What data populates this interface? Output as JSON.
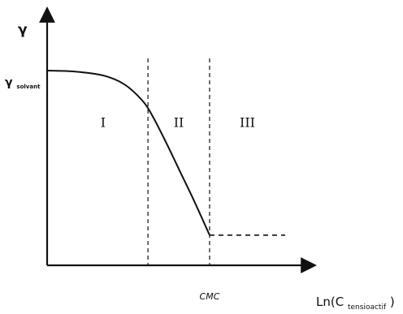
{
  "chart_data": {
    "type": "line",
    "y_axis": {
      "symbol": "γ",
      "level_label_main": "γ",
      "level_label_sub": "solvant"
    },
    "x_axis": {
      "label_main": "Ln(C",
      "label_sub": "tensioactif",
      "label_end": ")"
    },
    "markers": [
      {
        "label": "CMC"
      }
    ],
    "regions": [
      "I",
      "II",
      "III"
    ],
    "series": [
      {
        "points": [
          [
            0,
            100
          ],
          [
            0.4,
            99.5
          ],
          [
            0.8,
            97.5
          ],
          [
            1.1,
            93
          ],
          [
            1.35,
            85
          ],
          [
            1.5,
            77
          ],
          [
            1.7,
            63
          ],
          [
            1.9,
            48
          ],
          [
            2.1,
            33
          ],
          [
            2.32,
            15.5
          ]
        ]
      }
    ],
    "plateau": {
      "from": 2.32,
      "to": 3.4,
      "value": 15.5,
      "style": "dashed"
    },
    "dividers": [
      {
        "x": 1.44,
        "style": "dashed"
      },
      {
        "x": 2.32,
        "style": "dashed"
      }
    ],
    "xlim": [
      0,
      4.2
    ],
    "ylim": [
      0,
      125
    ],
    "grid": false,
    "legend": "none"
  }
}
